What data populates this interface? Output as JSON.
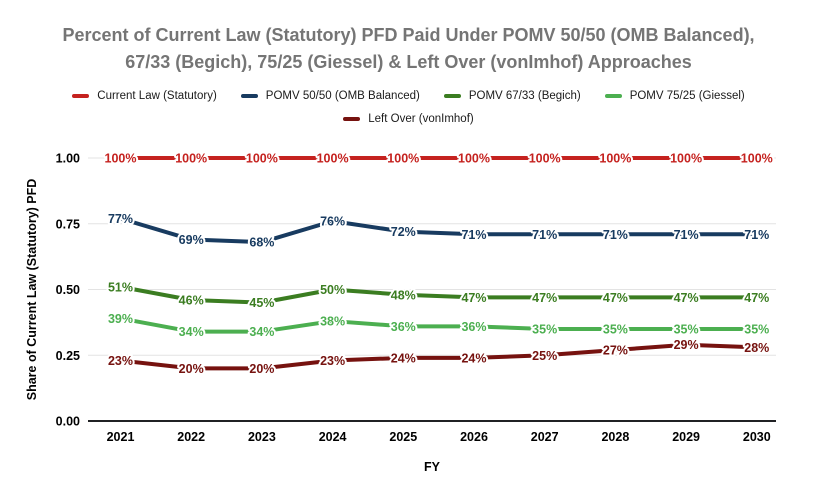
{
  "title": "Percent of Current Law (Statutory) PFD Paid Under POMV 50/50 (OMB Balanced), 67/33 (Begich), 75/25 (Giessel) & Left Over (vonImhof) Approaches",
  "chart_data": {
    "type": "line",
    "title": "Percent of Current Law (Statutory) PFD Paid Under POMV 50/50 (OMB Balanced), 67/33 (Begich), 75/25 (Giessel) & Left Over (vonImhof) Approaches",
    "x": [
      "2021",
      "2022",
      "2023",
      "2024",
      "2025",
      "2026",
      "2027",
      "2028",
      "2029",
      "2030"
    ],
    "xlabel": "FY",
    "ylabel": "Share of Current Law (Statutory) PFD",
    "ylim": [
      0,
      1
    ],
    "yticks": [
      {
        "label": "0.00",
        "v": 0
      },
      {
        "label": "0.25",
        "v": 25
      },
      {
        "label": "0.50",
        "v": 50
      },
      {
        "label": "0.75",
        "v": 75
      },
      {
        "label": "1.00",
        "v": 100
      }
    ],
    "grid": true,
    "legend_position": "top",
    "data_label_format": "percent",
    "colors": {
      "grid": "#e3e3e3",
      "axis_line": "#202124",
      "title_text": "#757575",
      "tick_text": "#000000"
    },
    "series": [
      {
        "name": "Current Law (Statutory)",
        "color": "#c5221f",
        "values": [
          100,
          100,
          100,
          100,
          100,
          100,
          100,
          100,
          100,
          100
        ]
      },
      {
        "name": "POMV 50/50 (OMB Balanced)",
        "color": "#183b60",
        "values": [
          77,
          69,
          68,
          76,
          72,
          71,
          71,
          71,
          71,
          71
        ]
      },
      {
        "name": "POMV 67/33 (Begich)",
        "color": "#3b7d21",
        "values": [
          51,
          46,
          45,
          50,
          48,
          47,
          47,
          47,
          47,
          47
        ]
      },
      {
        "name": "POMV 75/25 (Giessel)",
        "color": "#4caf50",
        "values": [
          39,
          34,
          34,
          38,
          36,
          36,
          35,
          35,
          35,
          35
        ]
      },
      {
        "name": "Left Over (vonImhof)",
        "color": "#76120f",
        "values": [
          23,
          20,
          20,
          23,
          24,
          24,
          25,
          27,
          29,
          28
        ]
      }
    ]
  }
}
